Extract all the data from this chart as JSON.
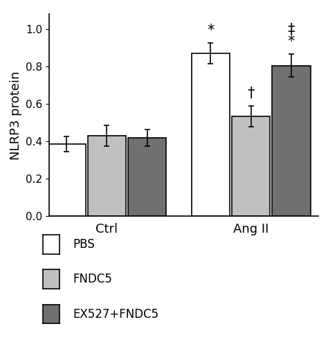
{
  "groups": [
    "Ctrl",
    "Ang II"
  ],
  "series": [
    "PBS",
    "FNDC5",
    "EX527+FNDC5"
  ],
  "bar_colors": [
    "#ffffff",
    "#c0c0c0",
    "#707070"
  ],
  "bar_edgecolor": "#000000",
  "values": {
    "Ctrl": [
      0.385,
      0.43,
      0.42
    ],
    "Ang II": [
      0.87,
      0.535,
      0.805
    ]
  },
  "errors": {
    "Ctrl": [
      0.04,
      0.055,
      0.045
    ],
    "Ang II": [
      0.055,
      0.055,
      0.06
    ]
  },
  "ylabel": "NLRP3 protein",
  "ylim": [
    0.0,
    1.08
  ],
  "yticks": [
    0.0,
    0.2,
    0.4,
    0.6,
    0.8,
    1.0
  ],
  "group_label_fontsize": 13,
  "ylabel_fontsize": 13,
  "tick_fontsize": 11,
  "legend_fontsize": 12,
  "annot_fontsize": 15,
  "bar_width": 0.2,
  "group_centers": [
    0.3,
    1.05
  ],
  "background_color": "#ffffff"
}
